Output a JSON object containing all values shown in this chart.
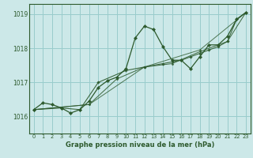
{
  "title": "Graphe pression niveau de la mer (hPa)",
  "bg_color": "#cce8e8",
  "grid_color": "#99cccc",
  "line_color": "#2d5a2d",
  "xlim": [
    -0.5,
    23.5
  ],
  "ylim": [
    1015.5,
    1019.3
  ],
  "yticks": [
    1016,
    1017,
    1018,
    1019
  ],
  "xticks": [
    0,
    1,
    2,
    3,
    4,
    5,
    6,
    7,
    8,
    9,
    10,
    11,
    12,
    13,
    14,
    15,
    16,
    17,
    18,
    19,
    20,
    21,
    22,
    23
  ],
  "series1": [
    [
      0,
      1016.2
    ],
    [
      1,
      1016.4
    ],
    [
      2,
      1016.35
    ],
    [
      3,
      1016.25
    ],
    [
      4,
      1016.1
    ],
    [
      5,
      1016.2
    ],
    [
      6,
      1016.45
    ],
    [
      7,
      1016.85
    ],
    [
      8,
      1017.05
    ],
    [
      9,
      1017.15
    ],
    [
      10,
      1017.4
    ],
    [
      11,
      1018.3
    ],
    [
      12,
      1018.65
    ],
    [
      13,
      1018.55
    ],
    [
      14,
      1018.05
    ],
    [
      15,
      1017.65
    ],
    [
      16,
      1017.65
    ],
    [
      17,
      1017.4
    ],
    [
      18,
      1017.75
    ],
    [
      19,
      1018.1
    ],
    [
      20,
      1018.1
    ],
    [
      21,
      1018.35
    ],
    [
      22,
      1018.85
    ],
    [
      23,
      1019.05
    ]
  ],
  "series2": [
    [
      0,
      1016.2
    ],
    [
      3,
      1016.25
    ],
    [
      5,
      1016.2
    ],
    [
      7,
      1017.0
    ],
    [
      10,
      1017.35
    ],
    [
      12,
      1017.45
    ],
    [
      14,
      1017.55
    ],
    [
      15,
      1017.6
    ],
    [
      16,
      1017.65
    ],
    [
      17,
      1017.75
    ],
    [
      18,
      1017.85
    ],
    [
      19,
      1017.95
    ],
    [
      20,
      1018.05
    ],
    [
      21,
      1018.2
    ],
    [
      22,
      1018.85
    ],
    [
      23,
      1019.05
    ]
  ],
  "series3": [
    [
      0,
      1016.2
    ],
    [
      6,
      1016.35
    ],
    [
      9,
      1017.1
    ],
    [
      12,
      1017.45
    ],
    [
      15,
      1017.55
    ],
    [
      18,
      1017.9
    ],
    [
      21,
      1018.2
    ],
    [
      23,
      1019.05
    ]
  ],
  "series4": [
    [
      0,
      1016.2
    ],
    [
      6,
      1016.35
    ],
    [
      12,
      1017.45
    ],
    [
      18,
      1017.95
    ],
    [
      23,
      1019.05
    ]
  ]
}
